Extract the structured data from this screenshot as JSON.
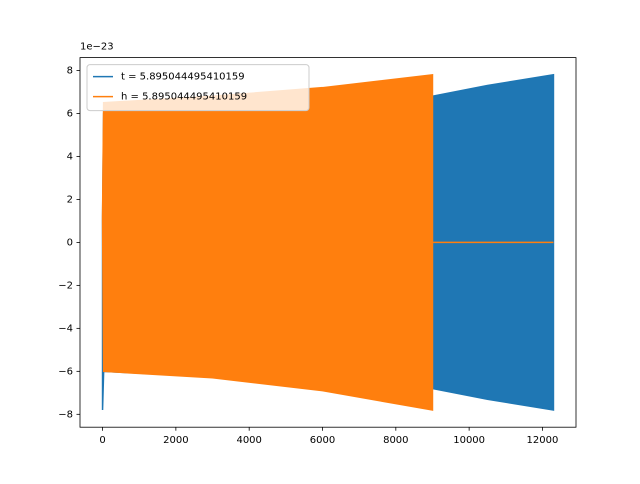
{
  "chart_data": {
    "type": "band",
    "y_offset_label": "1e−23",
    "xlim": [
      -615,
      12915
    ],
    "ylim": [
      -8.6,
      8.6
    ],
    "xticks": [
      0,
      2000,
      4000,
      6000,
      8000,
      10000,
      12000
    ],
    "yticks": [
      {
        "value": -8,
        "label": "−8"
      },
      {
        "value": -6,
        "label": "−6"
      },
      {
        "value": -4,
        "label": "−4"
      },
      {
        "value": -2,
        "label": "−2"
      },
      0,
      2,
      4,
      6,
      8
    ],
    "legend": "upper left",
    "series": [
      {
        "name": "t = 5.895044495410159",
        "color": "#1f77b4",
        "x": [
          0,
          30,
          9000,
          10500,
          12300
        ],
        "upper": [
          1.0,
          6.0,
          6.8,
          7.3,
          7.8
        ],
        "lower": [
          -7.8,
          -6.0,
          -6.8,
          -7.3,
          -7.8
        ]
      },
      {
        "name": "h = 5.895044495410159",
        "color": "#ff7f0e",
        "x": [
          0,
          30,
          3000,
          6000,
          9000,
          9000,
          12300
        ],
        "upper": [
          1.2,
          6.5,
          6.8,
          7.2,
          7.8,
          0,
          0
        ],
        "lower": [
          1.2,
          -6.0,
          -6.3,
          -6.9,
          -7.8,
          0,
          0
        ]
      }
    ]
  }
}
